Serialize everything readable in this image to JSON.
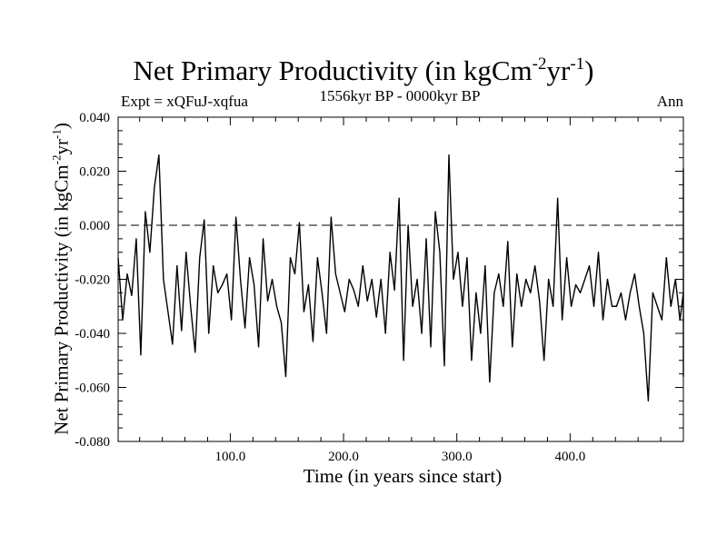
{
  "chart_data": {
    "type": "line",
    "title_main": "Net Primary Productivity (in kgCm",
    "title_sup1": "-2",
    "title_mid": "yr",
    "title_sup2": "-1",
    "title_end": ")",
    "experiment_label": "Expt = xQFuJ-xqfua",
    "period_label": "1556kyr BP - 0000kyr BP",
    "season_label": "Ann",
    "xlabel": "Time (in years since start)",
    "ylabel_main": "Net Primary Productivity (in kgCm",
    "ylabel_sup1": "-2",
    "ylabel_mid": "yr",
    "ylabel_sup2": "-1",
    "ylabel_end": ")",
    "xlim": [
      1,
      500
    ],
    "ylim": [
      -0.08,
      0.04
    ],
    "x_ticks": [
      100,
      200,
      300,
      400
    ],
    "x_tick_labels": [
      "100.0",
      "200.0",
      "300.0",
      "400.0"
    ],
    "y_ticks": [
      -0.08,
      -0.06,
      -0.04,
      -0.02,
      0.0,
      0.02,
      0.04
    ],
    "y_tick_labels": [
      "-0.080",
      "-0.060",
      "-0.040",
      "-0.020",
      "0.000",
      "0.020",
      "0.040"
    ],
    "reference_line": {
      "y": 0.0,
      "style": "dashed"
    },
    "grid": false,
    "series": [
      {
        "name": "Net Primary Productivity (annual)",
        "x_start": 1,
        "x_step": 4,
        "values": [
          -0.012,
          -0.035,
          -0.018,
          -0.026,
          -0.005,
          -0.048,
          0.005,
          -0.01,
          0.014,
          0.026,
          -0.02,
          -0.032,
          -0.044,
          -0.015,
          -0.039,
          -0.01,
          -0.03,
          -0.047,
          -0.012,
          0.002,
          -0.04,
          -0.015,
          -0.025,
          -0.022,
          -0.018,
          -0.035,
          0.003,
          -0.02,
          -0.038,
          -0.012,
          -0.022,
          -0.045,
          -0.005,
          -0.028,
          -0.02,
          -0.03,
          -0.036,
          -0.056,
          -0.012,
          -0.018,
          0.001,
          -0.032,
          -0.022,
          -0.043,
          -0.012,
          -0.025,
          -0.04,
          0.003,
          -0.018,
          -0.025,
          -0.032,
          -0.02,
          -0.024,
          -0.03,
          -0.015,
          -0.028,
          -0.02,
          -0.034,
          -0.02,
          -0.04,
          -0.01,
          -0.024,
          0.01,
          -0.05,
          0.0,
          -0.03,
          -0.02,
          -0.04,
          -0.005,
          -0.045,
          0.005,
          -0.01,
          -0.052,
          0.026,
          -0.02,
          -0.01,
          -0.03,
          -0.012,
          -0.05,
          -0.025,
          -0.04,
          -0.015,
          -0.058,
          -0.025,
          -0.018,
          -0.03,
          -0.006,
          -0.045,
          -0.018,
          -0.03,
          -0.02,
          -0.025,
          -0.015,
          -0.028,
          -0.05,
          -0.02,
          -0.03,
          0.01,
          -0.035,
          -0.012,
          -0.03,
          -0.022,
          -0.025,
          -0.02,
          -0.015,
          -0.03,
          -0.01,
          -0.035,
          -0.02,
          -0.03,
          -0.03,
          -0.025,
          -0.035,
          -0.025,
          -0.018,
          -0.03,
          -0.04,
          -0.065,
          -0.025,
          -0.03,
          -0.035,
          -0.012,
          -0.03,
          -0.02,
          -0.035,
          -0.025,
          -0.03,
          -0.012,
          -0.022,
          -0.01,
          -0.034,
          -0.04,
          -0.01,
          -0.02,
          -0.03,
          -0.025,
          -0.01,
          -0.033,
          -0.015,
          -0.036,
          -0.03,
          -0.03,
          -0.012,
          -0.03,
          -0.015,
          -0.035,
          -0.015,
          -0.025,
          -0.02,
          -0.02,
          -0.025,
          -0.015,
          0.0,
          0.021,
          -0.01,
          0.0,
          -0.015,
          -0.035,
          -0.01,
          -0.04,
          -0.02,
          -0.01,
          -0.03,
          -0.05,
          -0.025,
          -0.015,
          -0.035,
          -0.025,
          -0.015,
          -0.03,
          -0.01,
          -0.025,
          -0.005,
          -0.04,
          -0.01,
          -0.03,
          -0.05,
          -0.025,
          -0.045,
          -0.035,
          -0.005,
          -0.015,
          -0.025,
          -0.035,
          -0.015,
          -0.025,
          -0.035,
          -0.025,
          -0.01,
          -0.035,
          -0.015,
          -0.025,
          -0.01,
          -0.03,
          -0.032,
          -0.035,
          -0.025,
          0.002,
          -0.03,
          0.005,
          -0.038,
          -0.015,
          -0.03,
          -0.025,
          -0.02,
          -0.035,
          -0.025,
          -0.045,
          -0.015,
          0.01,
          -0.015,
          -0.025,
          -0.02,
          -0.02,
          -0.03,
          -0.035,
          -0.01,
          -0.04,
          -0.02,
          -0.035,
          -0.035,
          0.0,
          -0.02,
          -0.032,
          -0.028,
          0.015,
          -0.015,
          -0.025,
          -0.018,
          -0.04,
          -0.022,
          -0.025,
          -0.015,
          -0.056,
          -0.02,
          -0.015,
          -0.028,
          0.005,
          -0.02,
          -0.025,
          -0.03,
          -0.02,
          -0.035,
          -0.015,
          -0.03,
          -0.02,
          -0.03,
          -0.015,
          -0.025,
          -0.035,
          -0.01,
          -0.03,
          -0.045,
          -0.025,
          -0.02,
          -0.035,
          -0.015,
          -0.03,
          0.002,
          -0.025,
          -0.02,
          -0.015,
          -0.03,
          -0.025,
          0.005,
          -0.035,
          -0.015,
          -0.02,
          -0.03,
          -0.025,
          -0.01,
          -0.03
        ]
      }
    ]
  }
}
